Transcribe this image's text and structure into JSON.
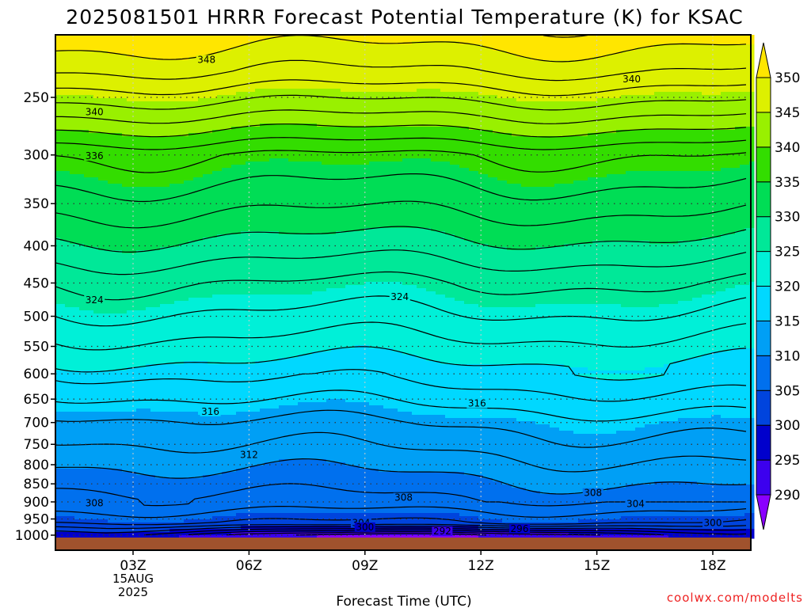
{
  "chart_data": {
    "type": "heatmap",
    "title": "2025081501 HRRR Forecast Potential Temperature (K) for KSAC",
    "xlabel": "Forecast Time (UTC)",
    "credit": "coolwx.com/modelts",
    "x_ticks": [
      "03Z",
      "06Z",
      "09Z",
      "12Z",
      "15Z",
      "18Z"
    ],
    "x_date": {
      "day": "15AUG",
      "year": "2025"
    },
    "y_ticks": [
      250,
      300,
      350,
      400,
      450,
      500,
      550,
      600,
      650,
      700,
      750,
      800,
      850,
      900,
      950,
      1000
    ],
    "colorbar": {
      "levels": [
        290,
        295,
        300,
        305,
        310,
        315,
        320,
        325,
        330,
        335,
        340,
        345,
        350
      ],
      "colors": [
        "#8a00ff",
        "#3c00ee",
        "#0000cc",
        "#0044dd",
        "#0070ee",
        "#009ff5",
        "#00d8ff",
        "#00f0d8",
        "#00e898",
        "#00dd55",
        "#33dd00",
        "#99f000",
        "#ddf000",
        "#ffe600"
      ]
    },
    "contour_labels": [
      {
        "text": "348",
        "x": 4.9,
        "p": 222
      },
      {
        "text": "340",
        "x": 15.9,
        "p": 236
      },
      {
        "text": "340",
        "x": 2.0,
        "p": 262
      },
      {
        "text": "336",
        "x": 2.0,
        "p": 301
      },
      {
        "text": "324",
        "x": 2.0,
        "p": 475
      },
      {
        "text": "324",
        "x": 9.9,
        "p": 470
      },
      {
        "text": "316",
        "x": 5.0,
        "p": 676
      },
      {
        "text": "316",
        "x": 11.9,
        "p": 659
      },
      {
        "text": "312",
        "x": 6.0,
        "p": 775
      },
      {
        "text": "308",
        "x": 2.0,
        "p": 903
      },
      {
        "text": "308",
        "x": 10.0,
        "p": 888
      },
      {
        "text": "308",
        "x": 14.9,
        "p": 875
      },
      {
        "text": "304",
        "x": 16.0,
        "p": 906
      },
      {
        "text": "304",
        "x": 8.9,
        "p": 962
      },
      {
        "text": "300",
        "x": 9.0,
        "p": 975
      },
      {
        "text": "300",
        "x": 18.0,
        "p": 962
      },
      {
        "text": "292",
        "x": 11.0,
        "p": 988
      },
      {
        "text": "296",
        "x": 13.0,
        "p": 980
      }
    ]
  }
}
